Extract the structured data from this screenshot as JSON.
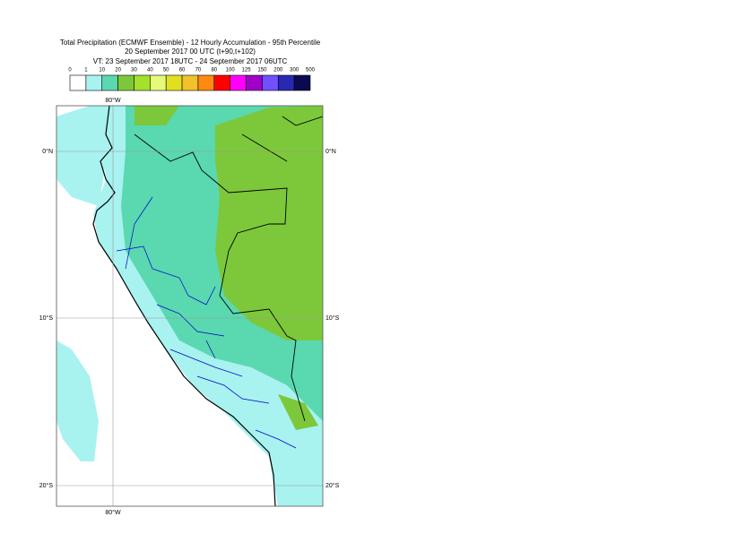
{
  "header": {
    "title": "Total Precipitation (ECMWF Ensemble) - 12 Hourly Accumulation - 95th Percentile",
    "run": "20 September 2017 00 UTC (t+90,t+102)",
    "valid": "VT: 23 September 2017 18UTC - 24 September 2017 06UTC"
  },
  "legend": {
    "levels": [
      0,
      1,
      10,
      20,
      30,
      40,
      50,
      60,
      70,
      80,
      100,
      125,
      150,
      200,
      300,
      500
    ],
    "colors": [
      "#ffffff",
      "#a8f2f0",
      "#5ad8b0",
      "#7cc83a",
      "#a4e02c",
      "#e6fa78",
      "#e0e020",
      "#f2c22a",
      "#ff8a10",
      "#ff0000",
      "#ff00ff",
      "#a000c8",
      "#7050ff",
      "#2828b0",
      "#0a0a50"
    ]
  },
  "map": {
    "lon_labels": [
      "80°W"
    ],
    "lat_labels": [
      "0°N",
      "10°S",
      "20°S"
    ]
  }
}
